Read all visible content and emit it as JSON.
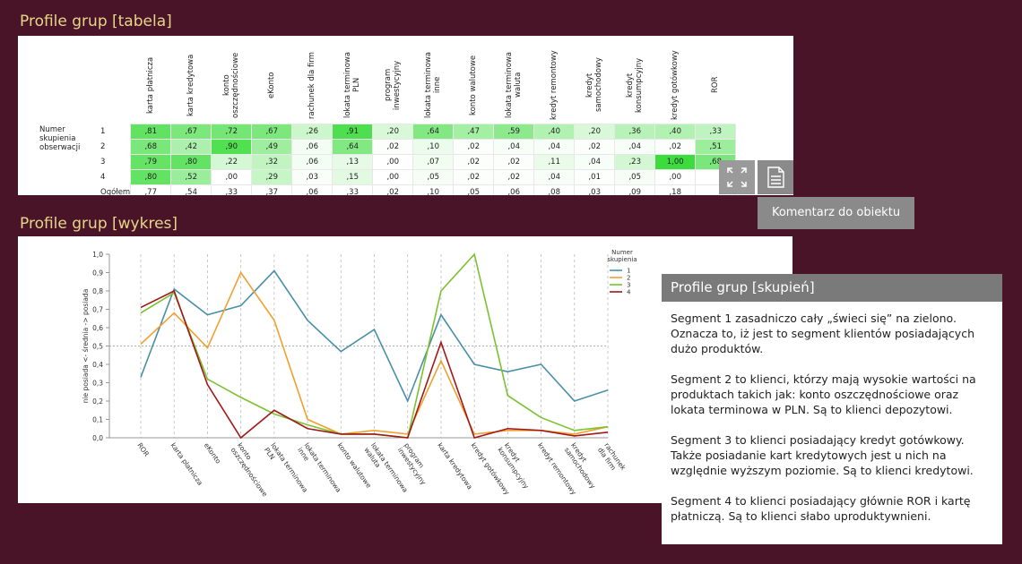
{
  "titles": {
    "table": "Profile grup [tabela]",
    "chart": "Profile grup [wykres]"
  },
  "table": {
    "columns": [
      "karta płatnicza",
      "karta kredytowa",
      "konto oszczędnościowe",
      "eKonto",
      "rachunek dla firm",
      "lokata terminowa PLN",
      "program inwestycyjny",
      "lokata terminowa inne",
      "konto walutowe",
      "lokata terminowa waluta",
      "kredyt remontowy",
      "kredyt samochodowy",
      "kredyt konsumpcyjny",
      "kredyt gotówkowy",
      "ROR"
    ],
    "row_group_label": "Numer skupienia obserwacji",
    "rows": [
      {
        "label": "1",
        "values": [
          ",81",
          ",67",
          ",72",
          ",67",
          ",26",
          ",91",
          ",20",
          ",64",
          ",47",
          ",59",
          ",40",
          ",20",
          ",36",
          ",40",
          ",33"
        ]
      },
      {
        "label": "2",
        "values": [
          ",68",
          ",42",
          ",90",
          ",49",
          ",06",
          ",64",
          ",02",
          ",10",
          ",02",
          ",04",
          ",04",
          ",02",
          ",04",
          ",02",
          ",51"
        ]
      },
      {
        "label": "3",
        "values": [
          ",79",
          ",80",
          ",22",
          ",32",
          ",06",
          ",13",
          ",00",
          ",07",
          ",02",
          ",02",
          ",11",
          ",04",
          ",23",
          "1,00",
          ",68"
        ]
      },
      {
        "label": "4",
        "values": [
          ",80",
          ",52",
          ",00",
          ",29",
          ",03",
          ",15",
          ",00",
          ",05",
          ",02",
          ",02",
          ",04",
          ",01",
          ",05",
          ",00",
          ""
        ]
      },
      {
        "label": "Ogółem",
        "values": [
          ",77",
          ",54",
          ",33",
          ",37",
          ",06",
          ",33",
          ",02",
          ",10",
          ",05",
          ",06",
          ",08",
          ",03",
          ",09",
          ",18",
          ""
        ]
      }
    ]
  },
  "icons": {
    "expand": "expand-icon",
    "comment": "comment-icon"
  },
  "tooltip": "Komentarz do obiektu",
  "comment": {
    "title": "Profile grup [skupień]",
    "paragraphs": [
      "Segment 1 zasadniczo cały „świeci się” na zielono. Oznacza to, iż jest to segment klientów posiadających dużo produktów.",
      "Segment 2 to klienci, którzy mają wysokie wartości na produktach takich jak: konto oszczędnościowe oraz lokata terminowa w PLN. Są to klienci depozytowi.",
      "Segment 3 to klienci posiadający kredyt gotówkowy. Także posiadanie kart kredytowych jest u nich na względnie wyższym poziomie. Są to klienci kredytowi.",
      "Segment 4 to klienci posiadający głównie ROR i kartę płatniczą. Są to klienci słabo uproduktywnieni."
    ]
  },
  "chart_data": {
    "type": "line",
    "ylabel": "nie posiada <- średnia -> posiada",
    "ylim": [
      0,
      1.0
    ],
    "yticks": [
      "0,0",
      "0,1",
      "0,2",
      "0,3",
      "0,4",
      "0,5",
      "0,6",
      "0,7",
      "0,8",
      "0,9",
      "1,0"
    ],
    "reference_line": 0.5,
    "categories": [
      "ROR",
      "karta płatnicza",
      "eKonto",
      "konto oszczędnościowe",
      "lokata terminowa PLN",
      "lokata terminowa inne",
      "konto walutowe",
      "lokata terminowa waluta",
      "program inwestycyjny",
      "karta kredytowa",
      "kredyt gotówkowy",
      "kredyt konsumpcyjny",
      "kredyt remontowy",
      "kredyt samochodowy",
      "rachunek dla firm"
    ],
    "category_labels": [
      "ROR",
      "karta płatnicza",
      "eKonto",
      "konto\noszczędnościowe",
      "lokata terminowa\nPLN",
      "lokata terminowa\ninne",
      "konto walutowe",
      "lokata terminowa\nwaluta",
      "program\ninwestycyjny",
      "karta kredytowa",
      "kredyt gotówkowy",
      "kredyt\nkonsumpcyjny",
      "kredyt remontowy",
      "kredyt\nsamochodowy",
      "rachunek\ndla firm"
    ],
    "legend_title": "Numer skupienia",
    "legend_position": "top-right",
    "series": [
      {
        "name": "1",
        "color": "#4a8fa8",
        "values": [
          0.33,
          0.81,
          0.67,
          0.72,
          0.91,
          0.64,
          0.47,
          0.59,
          0.2,
          0.67,
          0.4,
          0.36,
          0.4,
          0.2,
          0.26
        ]
      },
      {
        "name": "2",
        "color": "#f0a030",
        "values": [
          0.51,
          0.68,
          0.49,
          0.9,
          0.64,
          0.1,
          0.02,
          0.04,
          0.02,
          0.42,
          0.02,
          0.04,
          0.04,
          0.02,
          0.06
        ]
      },
      {
        "name": "3",
        "color": "#7ac230",
        "values": [
          0.68,
          0.79,
          0.32,
          0.22,
          0.13,
          0.07,
          0.02,
          0.02,
          0.0,
          0.8,
          1.0,
          0.23,
          0.11,
          0.04,
          0.06
        ]
      },
      {
        "name": "4",
        "color": "#a01818",
        "values": [
          0.71,
          0.8,
          0.29,
          0.0,
          0.15,
          0.05,
          0.02,
          0.02,
          0.0,
          0.52,
          0.0,
          0.05,
          0.04,
          0.01,
          0.03
        ]
      }
    ]
  }
}
